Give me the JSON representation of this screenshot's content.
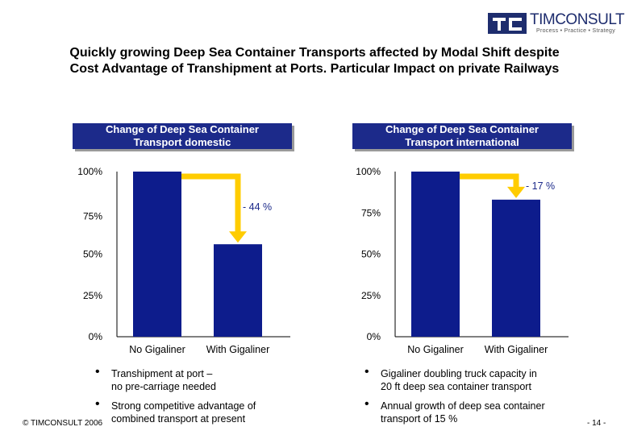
{
  "logo": {
    "name": "TIMCONSULT",
    "tagline": "Process • Practice • Strategy"
  },
  "title": [
    "Quickly growing Deep Sea Container Transports affected by Modal Shift despite",
    "Cost Advantage of Transhipment at Ports. Particular Impact on private Railways"
  ],
  "colors": {
    "bar": "#0d1c8c",
    "arrow": "#ffcc00",
    "accent": "#1c2a8a"
  },
  "chart_data": [
    {
      "type": "bar",
      "title": [
        "Change of Deep Sea Container",
        "Transport domestic"
      ],
      "categories": [
        "No Gigaliner",
        "With Gigaliner"
      ],
      "values": [
        100,
        56
      ],
      "ylim": [
        0,
        100
      ],
      "yticks": [
        "0%",
        "25%",
        "50%",
        "75%",
        "100%"
      ],
      "annotation": "- 44 %"
    },
    {
      "type": "bar",
      "title": [
        "Change of Deep Sea Container",
        "Transport international"
      ],
      "categories": [
        "No Gigaliner",
        "With Gigaliner"
      ],
      "values": [
        100,
        83
      ],
      "ylim": [
        0,
        100
      ],
      "yticks": [
        "0%",
        "25%",
        "50%",
        "75%",
        "100%"
      ],
      "annotation": "- 17 %"
    }
  ],
  "bullets_left": [
    [
      "Transhipment at port –",
      "no pre-carriage needed"
    ],
    [
      "Strong competitive advantage of",
      "combined transport at present"
    ]
  ],
  "bullets_right": [
    [
      "Gigaliner doubling truck capacity in",
      "20 ft deep sea container transport"
    ],
    [
      "Annual growth of deep sea container",
      "transport of 15 %"
    ]
  ],
  "footer": {
    "copyright": "© TIMCONSULT 2006",
    "page": "- 14 -"
  }
}
